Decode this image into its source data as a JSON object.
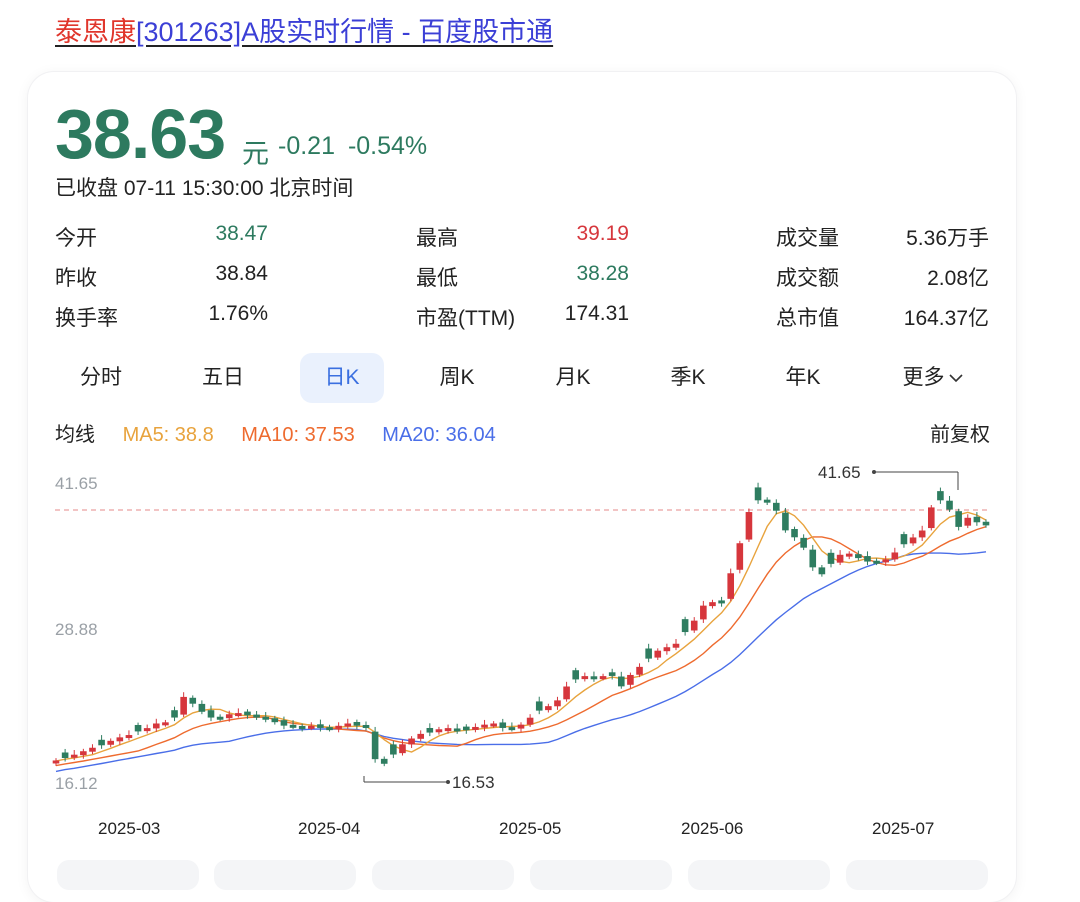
{
  "header": {
    "name": "泰恩康",
    "rest": "[301263]A股实时行情 - 百度股市通"
  },
  "quote": {
    "price": "38.63",
    "unit": "元",
    "change": "-0.21",
    "change_pct": "-0.54%",
    "status": "已收盘 07-11 15:30:00 北京时间"
  },
  "stats": [
    {
      "label": "今开",
      "value": "38.47"
    },
    {
      "label": "最高",
      "value": "39.19"
    },
    {
      "label": "成交量",
      "value": "5.36万手"
    },
    {
      "label": "昨收",
      "value": "38.84"
    },
    {
      "label": "最低",
      "value": "38.28"
    },
    {
      "label": "成交额",
      "value": "2.08亿"
    },
    {
      "label": "换手率",
      "value": "1.76%"
    },
    {
      "label": "市盈(TTM)",
      "value": "174.31"
    },
    {
      "label": "总市值",
      "value": "164.37亿"
    }
  ],
  "tabs": [
    "分时",
    "五日",
    "日K",
    "周K",
    "月K",
    "季K",
    "年K",
    "更多"
  ],
  "active_tab": "日K",
  "more_icon": "chevron-down-icon",
  "ma": {
    "label": "均线",
    "ma5": "MA5: 38.8",
    "ma10": "MA10: 37.53",
    "ma20": "MA20: 36.04",
    "fuquan": "前复权"
  },
  "colors": {
    "up": "#d6363c",
    "down": "#2e7d60",
    "ma5": "#e8a33d",
    "ma10": "#ee6b2f",
    "ma20": "#4a6ee8",
    "accent": "#3a6fe0"
  },
  "chart_data": {
    "type": "candlestick",
    "y_ticks": [
      "41.65",
      "28.88",
      "16.12"
    ],
    "x_ticks": [
      "2025-03",
      "2025-04",
      "2025-05",
      "2025-06",
      "2025-07"
    ],
    "ylim": [
      16.12,
      41.65
    ],
    "max_annotation": "41.65",
    "min_annotation": "16.53",
    "last_close": 38.63,
    "closes": [
      18.2,
      18.5,
      18.7,
      19.0,
      19.3,
      19.6,
      19.9,
      20.2,
      20.4,
      20.8,
      21.0,
      21.4,
      21.5,
      22.0,
      23.7,
      23.2,
      22.5,
      22.0,
      21.9,
      22.2,
      22.3,
      22.2,
      22.0,
      21.9,
      21.6,
      21.3,
      21.2,
      21.1,
      21.2,
      21.1,
      21.0,
      21.2,
      21.4,
      21.3,
      21.1,
      18.4,
      18.0,
      18.8,
      19.6,
      20.1,
      20.5,
      20.7,
      20.9,
      21.0,
      20.8,
      20.9,
      21.1,
      21.3,
      21.4,
      21.1,
      21.0,
      21.3,
      21.9,
      22.6,
      22.9,
      23.4,
      24.6,
      25.3,
      25.5,
      25.4,
      25.5,
      25.6,
      24.7,
      25.6,
      26.3,
      27.1,
      27.7,
      28.0,
      28.3,
      29.4,
      30.3,
      31.6,
      31.9,
      31.9,
      34.4,
      37.0,
      39.7,
      40.8,
      40.6,
      39.9,
      38.2,
      37.6,
      36.7,
      35.0,
      34.4,
      35.3,
      36.0,
      36.1,
      35.8,
      35.5,
      35.4,
      35.6,
      36.2,
      37.0,
      37.5,
      38.1,
      40.1,
      40.8,
      40.0,
      38.5,
      39.2,
      38.9,
      38.63
    ],
    "ma5_last": 38.8,
    "ma10_last": 37.53,
    "ma20_last": 36.04
  }
}
